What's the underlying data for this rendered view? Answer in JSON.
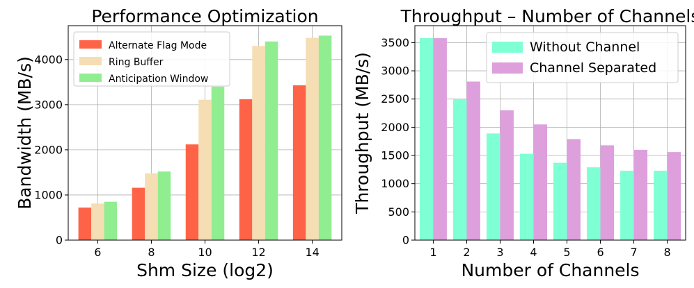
{
  "chart_data": [
    {
      "type": "bar",
      "title": "Performance Optimization",
      "xlabel": "Shm Size (log2)",
      "ylabel": "Bandwidth (MB/s)",
      "categories": [
        "6",
        "8",
        "10",
        "12",
        "14"
      ],
      "ylim": [
        0,
        4750
      ],
      "yticks": [
        0,
        1000,
        2000,
        3000,
        4000
      ],
      "grid": true,
      "legend_position": "top-left",
      "series": [
        {
          "name": "Alternate Flag Mode",
          "color": "#ff6347",
          "values": [
            720,
            1160,
            2120,
            3120,
            3430
          ]
        },
        {
          "name": "Ring Buffer",
          "color": "#f5deb3",
          "values": [
            810,
            1480,
            3110,
            4300,
            4480
          ]
        },
        {
          "name": "Anticipation Window",
          "color": "#90ee90",
          "values": [
            850,
            1520,
            3400,
            4400,
            4530
          ]
        }
      ]
    },
    {
      "type": "bar",
      "title": "Throughput – Number of Channels",
      "xlabel": "Number of Channels",
      "ylabel": "Throughput (MB/s)",
      "categories": [
        "1",
        "2",
        "3",
        "4",
        "5",
        "6",
        "7",
        "8"
      ],
      "ylim": [
        0,
        3800
      ],
      "yticks": [
        0,
        500,
        1000,
        1500,
        2000,
        2500,
        3000,
        3500
      ],
      "grid": true,
      "legend_position": "top-right",
      "series": [
        {
          "name": "Without Channel",
          "color": "#7fffd4",
          "values": [
            3580,
            2500,
            1890,
            1530,
            1370,
            1290,
            1230,
            1230
          ]
        },
        {
          "name": "Channel Separated",
          "color": "#dda0dd",
          "values": [
            3580,
            2810,
            2300,
            2050,
            1790,
            1680,
            1600,
            1560
          ]
        }
      ]
    }
  ]
}
